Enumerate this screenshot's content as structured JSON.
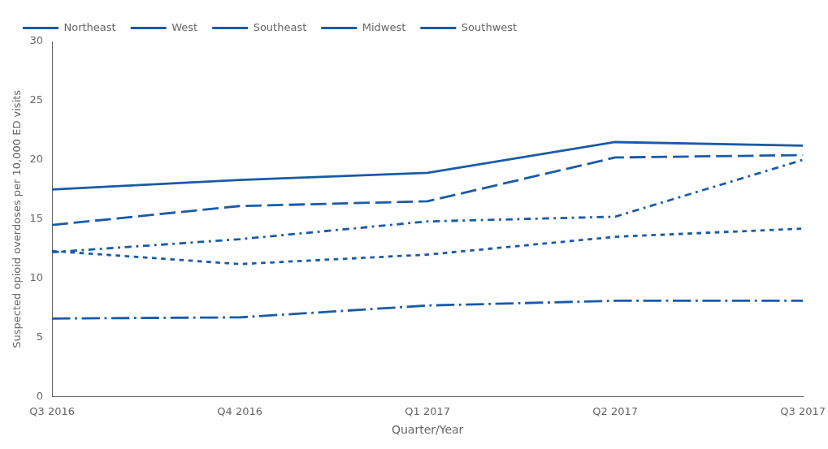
{
  "chart_data": {
    "type": "line",
    "categories": [
      "Q3 2016",
      "Q4 2016",
      "Q1 2017",
      "Q2 2017",
      "Q3 2017"
    ],
    "series": [
      {
        "name": "Northeast",
        "color": "#1a5ba6",
        "line_style": "solid",
        "values": [
          17.5,
          18.3,
          18.9,
          21.5,
          21.2
        ]
      },
      {
        "name": "West",
        "color": "#1a5ba6",
        "line_style": "long_dash",
        "values": [
          14.5,
          16.1,
          16.5,
          20.2,
          20.4
        ]
      },
      {
        "name": "Southeast",
        "color": "#1a5ba6",
        "line_style": "dotted",
        "values": [
          12.3,
          11.2,
          12.0,
          13.5,
          14.2
        ]
      },
      {
        "name": "Midwest",
        "color": "#1a5ba6",
        "line_style": "short_dashdot",
        "values": [
          12.2,
          13.3,
          14.8,
          15.2,
          20.0
        ]
      },
      {
        "name": "Southwest",
        "color": "#1a5ba6",
        "line_style": "long_dashdot",
        "values": [
          6.6,
          6.7,
          7.7,
          8.1,
          8.1
        ]
      }
    ],
    "x_label": "Quarter/Year",
    "y_label": "Suspected opioid overdoses per 10,000 ED visits",
    "ylim": [
      0,
      30
    ],
    "yticks": [
      0,
      5,
      10,
      15,
      20,
      25,
      30
    ],
    "grid": false,
    "legend": "upper left"
  }
}
